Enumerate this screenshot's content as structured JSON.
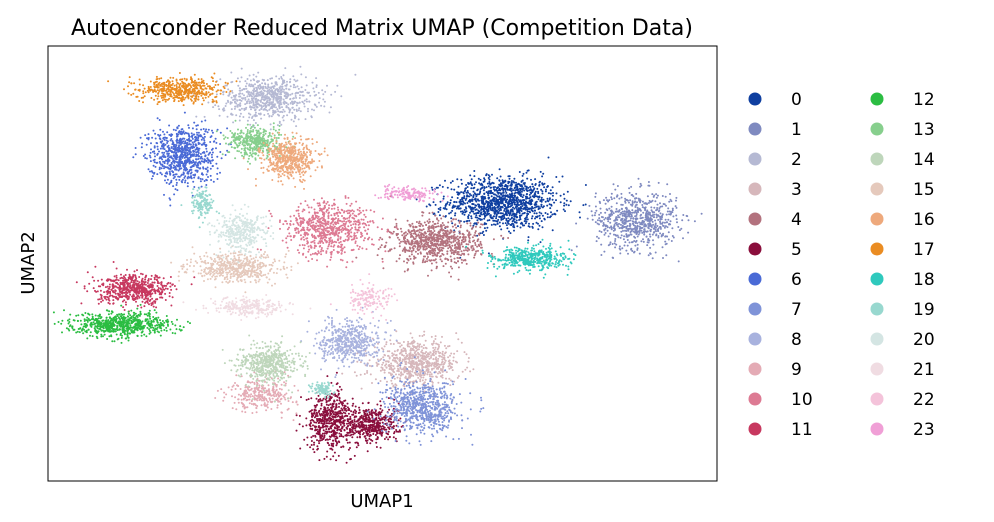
{
  "chart_data": {
    "type": "scatter",
    "title": "Autoenconder Reduced Matrix UMAP (Competition Data)",
    "xlabel": "UMAP1",
    "ylabel": "UMAP2",
    "grid": false,
    "ticks": "none",
    "xlim": [
      0,
      100
    ],
    "ylim": [
      0,
      100
    ],
    "legend_position": "right",
    "legend_columns": 2,
    "series": [
      {
        "name": "0",
        "color": "#0f3fa0",
        "clusters": [
          {
            "x": 68,
            "y": 64,
            "sx": 7.5,
            "sy": 5.5,
            "n": 1200
          }
        ]
      },
      {
        "name": "1",
        "color": "#7f8ac0",
        "clusters": [
          {
            "x": 88,
            "y": 60,
            "sx": 5.5,
            "sy": 6.0,
            "n": 700
          }
        ]
      },
      {
        "name": "2",
        "color": "#b5b9d3",
        "clusters": [
          {
            "x": 33,
            "y": 88,
            "sx": 6.5,
            "sy": 4.5,
            "n": 700
          }
        ]
      },
      {
        "name": "3",
        "color": "#d6b7bb",
        "clusters": [
          {
            "x": 55,
            "y": 27,
            "sx": 6.0,
            "sy": 4.5,
            "n": 700
          }
        ]
      },
      {
        "name": "4",
        "color": "#b3727e",
        "clusters": [
          {
            "x": 58,
            "y": 55,
            "sx": 6.0,
            "sy": 4.5,
            "n": 800
          }
        ]
      },
      {
        "name": "5",
        "color": "#8a0e3c",
        "clusters": [
          {
            "x": 42,
            "y": 14,
            "sx": 3.0,
            "sy": 6.0,
            "n": 500
          },
          {
            "x": 48,
            "y": 13,
            "sx": 4.0,
            "sy": 4.0,
            "n": 500
          }
        ]
      },
      {
        "name": "6",
        "color": "#4a6ad6",
        "clusters": [
          {
            "x": 20,
            "y": 75,
            "sx": 4.5,
            "sy": 6.0,
            "n": 800
          }
        ]
      },
      {
        "name": "7",
        "color": "#7f93d8",
        "clusters": [
          {
            "x": 56,
            "y": 17,
            "sx": 5.0,
            "sy": 5.5,
            "n": 700
          }
        ]
      },
      {
        "name": "8",
        "color": "#a8b2de",
        "clusters": [
          {
            "x": 45,
            "y": 32,
            "sx": 4.0,
            "sy": 4.5,
            "n": 500
          }
        ]
      },
      {
        "name": "9",
        "color": "#e4abb5",
        "clusters": [
          {
            "x": 32,
            "y": 20,
            "sx": 4.5,
            "sy": 3.5,
            "n": 300
          }
        ]
      },
      {
        "name": "10",
        "color": "#dd7a93",
        "clusters": [
          {
            "x": 42,
            "y": 58,
            "sx": 6.0,
            "sy": 5.5,
            "n": 700
          }
        ]
      },
      {
        "name": "11",
        "color": "#c7385f",
        "clusters": [
          {
            "x": 13,
            "y": 44,
            "sx": 5.0,
            "sy": 3.0,
            "n": 600
          }
        ]
      },
      {
        "name": "12",
        "color": "#2bbd42",
        "clusters": [
          {
            "x": 11,
            "y": 36,
            "sx": 6.5,
            "sy": 2.5,
            "n": 700
          }
        ]
      },
      {
        "name": "13",
        "color": "#87cf8d",
        "clusters": [
          {
            "x": 31,
            "y": 78,
            "sx": 3.5,
            "sy": 3.0,
            "n": 400
          }
        ]
      },
      {
        "name": "14",
        "color": "#bed6bb",
        "clusters": [
          {
            "x": 33,
            "y": 27,
            "sx": 4.0,
            "sy": 4.0,
            "n": 500
          }
        ]
      },
      {
        "name": "15",
        "color": "#e5c9bc",
        "clusters": [
          {
            "x": 28,
            "y": 49,
            "sx": 6.0,
            "sy": 3.0,
            "n": 500
          }
        ]
      },
      {
        "name": "16",
        "color": "#eea97c",
        "clusters": [
          {
            "x": 36,
            "y": 74,
            "sx": 3.5,
            "sy": 4.0,
            "n": 500
          }
        ]
      },
      {
        "name": "17",
        "color": "#ea8c22",
        "clusters": [
          {
            "x": 20,
            "y": 90,
            "sx": 5.5,
            "sy": 2.5,
            "n": 500
          }
        ]
      },
      {
        "name": "18",
        "color": "#2fc9bd",
        "clusters": [
          {
            "x": 72,
            "y": 51,
            "sx": 5.0,
            "sy": 2.5,
            "n": 450
          }
        ]
      },
      {
        "name": "19",
        "color": "#98d8cf",
        "clusters": [
          {
            "x": 23,
            "y": 64,
            "sx": 1.5,
            "sy": 3.0,
            "n": 150
          },
          {
            "x": 41,
            "y": 21,
            "sx": 1.5,
            "sy": 1.5,
            "n": 100
          }
        ]
      },
      {
        "name": "20",
        "color": "#d4e5e3",
        "clusters": [
          {
            "x": 29,
            "y": 57,
            "sx": 3.5,
            "sy": 4.0,
            "n": 350
          }
        ]
      },
      {
        "name": "21",
        "color": "#f0dce2",
        "clusters": [
          {
            "x": 30,
            "y": 40,
            "sx": 5.0,
            "sy": 2.0,
            "n": 250
          }
        ]
      },
      {
        "name": "22",
        "color": "#f4c3da",
        "clusters": [
          {
            "x": 48,
            "y": 42,
            "sx": 3.5,
            "sy": 3.0,
            "n": 150
          }
        ]
      },
      {
        "name": "23",
        "color": "#f09fd6",
        "clusters": [
          {
            "x": 54,
            "y": 66,
            "sx": 4.0,
            "sy": 1.5,
            "n": 150
          }
        ]
      }
    ]
  }
}
